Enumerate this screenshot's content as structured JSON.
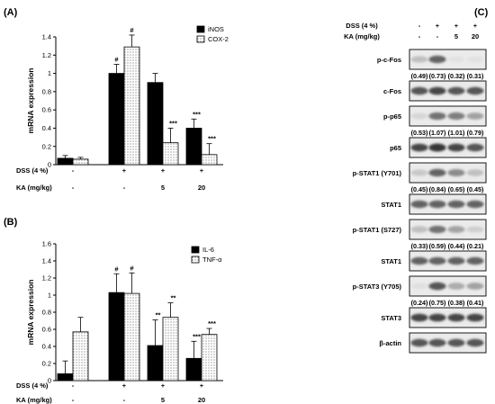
{
  "panels": {
    "a_label": "(A)",
    "b_label": "(B)",
    "c_label": "(C)"
  },
  "chart_data": [
    {
      "type": "bar",
      "panel": "(A)",
      "ylabel": "mRNA expression",
      "ylim": [
        0,
        1.4
      ],
      "yticks": [
        0,
        0.2,
        0.4,
        0.6,
        0.8,
        1,
        1.2,
        1.4
      ],
      "ytick_labels": [
        "0",
        "0.2",
        "0.4",
        "0.6",
        "0.8",
        "1",
        "1.2",
        "1.4"
      ],
      "conditions": [
        {
          "name": "DSS (4 %)",
          "values": [
            "-",
            "+",
            "+",
            "+"
          ]
        },
        {
          "name": "KA (mg/kg)",
          "values": [
            "-",
            "-",
            "5",
            "20"
          ]
        }
      ],
      "legend_position": "top-right",
      "series": [
        {
          "name": "iNOS",
          "fill": "#000000",
          "values": [
            0.07,
            1.0,
            0.9,
            0.4
          ],
          "errors": [
            0.03,
            0.1,
            0.1,
            0.1
          ],
          "marks": [
            "",
            "#",
            "",
            "***"
          ]
        },
        {
          "name": "COX-2",
          "fill": "dots",
          "values": [
            0.06,
            1.29,
            0.24,
            0.11
          ],
          "errors": [
            0.02,
            0.13,
            0.16,
            0.12
          ],
          "marks": [
            "",
            "#",
            "***",
            "***"
          ]
        }
      ]
    },
    {
      "type": "bar",
      "panel": "(B)",
      "ylabel": "mRNA expression",
      "ylim": [
        0,
        1.6
      ],
      "yticks": [
        0,
        0.2,
        0.4,
        0.6,
        0.8,
        1,
        1.2,
        1.4,
        1.6
      ],
      "ytick_labels": [
        "0",
        "0.2",
        "0.4",
        "0.6",
        "0.8",
        "1",
        "1.2",
        "1.4",
        "1.6"
      ],
      "conditions": [
        {
          "name": "DSS (4 %)",
          "values": [
            "-",
            "+",
            "+",
            "+"
          ]
        },
        {
          "name": "KA (mg/kg)",
          "values": [
            "-",
            "-",
            "5",
            "20"
          ]
        }
      ],
      "legend_position": "top-right",
      "series": [
        {
          "name": "IL-6",
          "fill": "#000000",
          "values": [
            0.08,
            1.03,
            0.41,
            0.26
          ],
          "errors": [
            0.15,
            0.22,
            0.3,
            0.2
          ],
          "marks": [
            "",
            "#",
            "**",
            "***"
          ]
        },
        {
          "name": "TNF-α",
          "fill": "dots",
          "values": [
            0.57,
            1.02,
            0.74,
            0.54
          ],
          "errors": [
            0.17,
            0.24,
            0.17,
            0.07
          ],
          "marks": [
            "",
            "#",
            "**",
            "***"
          ]
        }
      ]
    }
  ],
  "blot": {
    "header": [
      {
        "label": "DSS (4 %)",
        "values": [
          "-",
          "+",
          "+",
          "+"
        ]
      },
      {
        "label": "KA (mg/kg)",
        "values": [
          "-",
          "-",
          "5",
          "20"
        ]
      }
    ],
    "rows": [
      {
        "label": "p-c-Fos",
        "bands": [
          0.35,
          0.75,
          0.1,
          0.1
        ],
        "quant": [
          "(0.49)",
          "(0.73)",
          "(0.32)",
          "(0.31)"
        ]
      },
      {
        "label": "c-Fos",
        "bands": [
          0.8,
          0.85,
          0.8,
          0.8
        ],
        "quant": []
      },
      {
        "label": "p-p65",
        "bands": [
          0.2,
          0.7,
          0.65,
          0.5
        ],
        "quant": [
          "(0.53)",
          "(1.07)",
          "(1.01)",
          "(0.79)"
        ]
      },
      {
        "label": "p65",
        "bands": [
          0.85,
          0.9,
          0.85,
          0.8
        ],
        "quant": []
      },
      {
        "label": "p-STAT1 (Y701)",
        "bands": [
          0.3,
          0.75,
          0.6,
          0.35
        ],
        "quant": [
          "(0.45)",
          "(0.84)",
          "(0.65)",
          "(0.45)"
        ]
      },
      {
        "label": "STAT1",
        "bands": [
          0.75,
          0.75,
          0.75,
          0.75
        ],
        "quant": []
      },
      {
        "label": "p-STAT1 (S727)",
        "bands": [
          0.35,
          0.7,
          0.5,
          0.25
        ],
        "quant": [
          "(0.33)",
          "(0.59)",
          "(0.44)",
          "(0.21)"
        ]
      },
      {
        "label": "STAT1",
        "bands": [
          0.75,
          0.75,
          0.75,
          0.75
        ],
        "quant": []
      },
      {
        "label": "p-STAT3 (Y705)",
        "bands": [
          0.12,
          0.8,
          0.45,
          0.5
        ],
        "quant": [
          "(0.24)",
          "(0.75)",
          "(0.38)",
          "(0.41)"
        ]
      },
      {
        "label": "STAT3",
        "bands": [
          0.85,
          0.85,
          0.85,
          0.85
        ],
        "quant": []
      },
      {
        "label": "β-actin",
        "bands": [
          0.8,
          0.8,
          0.8,
          0.8
        ],
        "quant": []
      }
    ]
  }
}
